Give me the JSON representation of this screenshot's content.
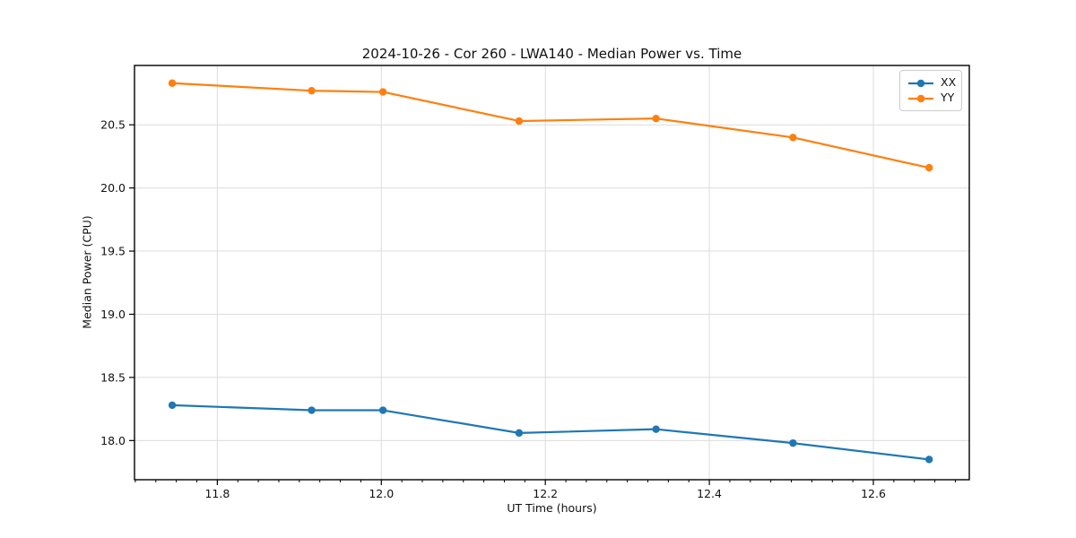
{
  "chart_data": {
    "type": "line",
    "title": "2024-10-26 - Cor 260 - LWA140 - Median Power vs. Time",
    "xlabel": "UT Time (hours)",
    "ylabel": "Median Power (CPU)",
    "xlim": [
      11.699,
      12.717
    ],
    "ylim": [
      17.69,
      20.97
    ],
    "xticks": [
      11.8,
      12.0,
      12.2,
      12.4,
      12.6
    ],
    "yticks": [
      18.0,
      18.5,
      19.0,
      19.5,
      20.0,
      20.5
    ],
    "minor_xtick_step": 0.025,
    "grid": true,
    "legend_position": "upper right",
    "x": [
      11.745,
      11.915,
      12.002,
      12.168,
      12.335,
      12.502,
      12.668
    ],
    "series": [
      {
        "name": "XX",
        "color": "#1f77b4",
        "values": [
          18.28,
          18.24,
          18.24,
          18.06,
          18.09,
          17.98,
          17.85
        ]
      },
      {
        "name": "YY",
        "color": "#ff7f0e",
        "values": [
          20.83,
          20.77,
          20.76,
          20.53,
          20.55,
          20.4,
          20.16
        ]
      }
    ]
  },
  "style_colors": {
    "spine": "#000000",
    "grid": "#dcdcdc",
    "text": "#111111",
    "background": "#ffffff"
  }
}
